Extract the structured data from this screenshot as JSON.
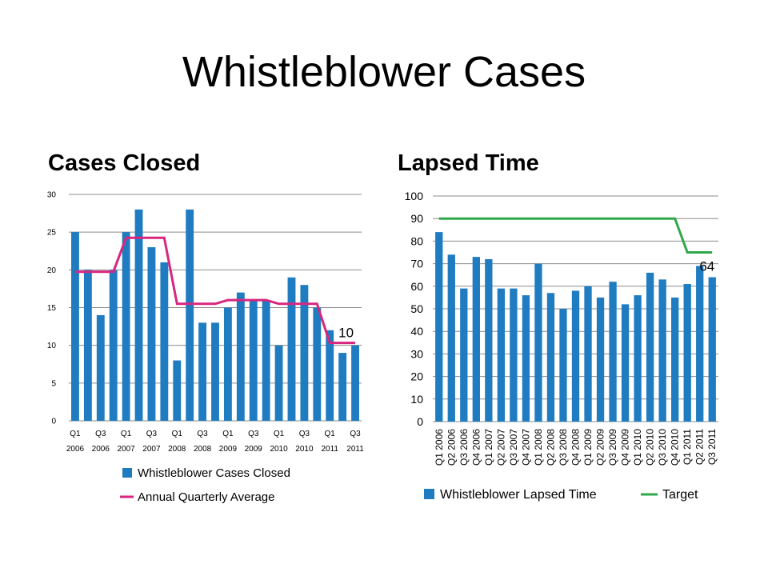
{
  "slide": {
    "title": "Whistleblower Cases",
    "left_heading": "Cases Closed",
    "right_heading": "Lapsed Time"
  },
  "colors": {
    "bar": "#1F7CC1",
    "avg_line": "#D8267F",
    "target_line": "#2EA84A",
    "grid": "#8C8C8C"
  },
  "chart_data": [
    {
      "type": "bar",
      "title": "",
      "categories": [
        "Q1 2006",
        "Q2 2006",
        "Q3 2006",
        "Q4 2006",
        "Q1 2007",
        "Q2 2007",
        "Q3 2007",
        "Q4 2007",
        "Q1 2008",
        "Q2 2008",
        "Q3 2008",
        "Q4 2008",
        "Q1 2009",
        "Q2 2009",
        "Q3 2009",
        "Q4 2009",
        "Q1 2010",
        "Q2 2010",
        "Q3 2010",
        "Q4 2010",
        "Q1 2011",
        "Q2 2011",
        "Q3 2011"
      ],
      "tick_labels": [
        [
          "Q1",
          "2006"
        ],
        [
          "Q3",
          "2006"
        ],
        [
          "Q1",
          "2007"
        ],
        [
          "Q3",
          "2007"
        ],
        [
          "Q1",
          "2008"
        ],
        [
          "Q3",
          "2008"
        ],
        [
          "Q1",
          "2009"
        ],
        [
          "Q3",
          "2009"
        ],
        [
          "Q1",
          "2010"
        ],
        [
          "Q3",
          "2010"
        ],
        [
          "Q1",
          "2011"
        ],
        [
          "Q3",
          "2011"
        ]
      ],
      "series": [
        {
          "name": "Whistleblower Cases Closed",
          "kind": "bar",
          "values": [
            25,
            20,
            14,
            20,
            25,
            28,
            23,
            21,
            8,
            28,
            13,
            13,
            15,
            17,
            16,
            16,
            10,
            19,
            18,
            15,
            12,
            9,
            10
          ]
        },
        {
          "name": "Annual Quarterly Average",
          "kind": "line",
          "values": [
            19.75,
            19.75,
            19.75,
            19.75,
            24.25,
            24.25,
            24.25,
            24.25,
            15.5,
            15.5,
            15.5,
            15.5,
            16,
            16,
            16,
            16,
            15.5,
            15.5,
            15.5,
            15.5,
            10.33,
            10.33,
            10.33
          ]
        }
      ],
      "ylim": [
        0,
        30
      ],
      "yticks": [
        0,
        5,
        10,
        15,
        20,
        25,
        30
      ],
      "data_label": "10",
      "grid": true,
      "legend": "bottom"
    },
    {
      "type": "bar",
      "title": "",
      "categories": [
        "Q1 2006",
        "Q2 2006",
        "Q3 2006",
        "Q4 2006",
        "Q1 2007",
        "Q2 2007",
        "Q3 2007",
        "Q4 2007",
        "Q1 2008",
        "Q2 2008",
        "Q3 2008",
        "Q4 2008",
        "Q1 2009",
        "Q2 2009",
        "Q3 2009",
        "Q4 2009",
        "Q1 2010",
        "Q2 2010",
        "Q3 2010",
        "Q4 2010",
        "Q1 2011",
        "Q2 2011",
        "Q3 2011"
      ],
      "series": [
        {
          "name": "Whistleblower Lapsed Time",
          "kind": "bar",
          "values": [
            84,
            74,
            59,
            73,
            72,
            59,
            59,
            56,
            70,
            57,
            50,
            58,
            60,
            55,
            62,
            52,
            56,
            66,
            63,
            55,
            61,
            69,
            64
          ]
        },
        {
          "name": "Target",
          "kind": "line",
          "values": [
            90,
            90,
            90,
            90,
            90,
            90,
            90,
            90,
            90,
            90,
            90,
            90,
            90,
            90,
            90,
            90,
            90,
            90,
            90,
            90,
            75,
            75,
            75
          ]
        }
      ],
      "ylim": [
        0,
        100
      ],
      "yticks": [
        0,
        10,
        20,
        30,
        40,
        50,
        60,
        70,
        80,
        90,
        100
      ],
      "data_label": "64",
      "grid": true,
      "legend": "bottom"
    }
  ]
}
